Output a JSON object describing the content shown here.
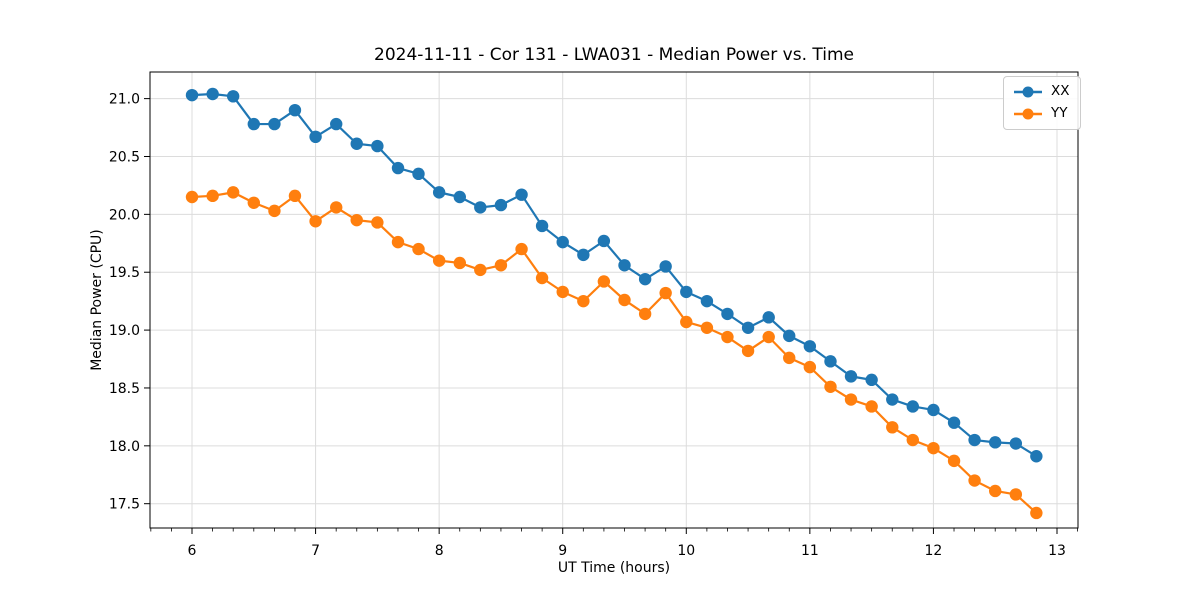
{
  "chart_data": {
    "type": "line",
    "title": "2024-11-11 - Cor 131 - LWA031 - Median Power vs. Time",
    "xlabel": "UT Time (hours)",
    "ylabel": "Median Power (CPU)",
    "xlim": [
      5.66,
      13.17
    ],
    "ylim": [
      17.29,
      21.23
    ],
    "x_ticks": [
      6,
      7,
      8,
      9,
      10,
      11,
      12,
      13
    ],
    "y_ticks": [
      17.5,
      18.0,
      18.5,
      19.0,
      19.5,
      20.0,
      20.5,
      21.0
    ],
    "x_minor_divisions": 6,
    "grid": true,
    "grid_color": "#dcdcdc",
    "legend_position": "upper right",
    "x": [
      6.0,
      6.167,
      6.333,
      6.5,
      6.667,
      6.833,
      7.0,
      7.167,
      7.333,
      7.5,
      7.667,
      7.833,
      8.0,
      8.167,
      8.333,
      8.5,
      8.667,
      8.833,
      9.0,
      9.167,
      9.333,
      9.5,
      9.667,
      9.833,
      10.0,
      10.167,
      10.333,
      10.5,
      10.667,
      10.833,
      11.0,
      11.167,
      11.333,
      11.5,
      11.667,
      11.833,
      12.0,
      12.167,
      12.333,
      12.5,
      12.667,
      12.833
    ],
    "series": [
      {
        "name": "XX",
        "color": "#1f77b4",
        "values": [
          21.03,
          21.04,
          21.02,
          20.78,
          20.78,
          20.9,
          20.67,
          20.78,
          20.61,
          20.59,
          20.4,
          20.35,
          20.19,
          20.15,
          20.06,
          20.08,
          20.17,
          19.9,
          19.76,
          19.65,
          19.77,
          19.56,
          19.44,
          19.55,
          19.33,
          19.25,
          19.14,
          19.02,
          19.11,
          18.95,
          18.86,
          18.73,
          18.6,
          18.57,
          18.4,
          18.34,
          18.31,
          18.2,
          18.05,
          18.03,
          18.02,
          17.91
        ]
      },
      {
        "name": "YY",
        "color": "#ff7f0e",
        "values": [
          20.15,
          20.16,
          20.19,
          20.1,
          20.03,
          20.16,
          19.94,
          20.06,
          19.95,
          19.93,
          19.76,
          19.7,
          19.6,
          19.58,
          19.52,
          19.56,
          19.7,
          19.45,
          19.33,
          19.25,
          19.42,
          19.26,
          19.14,
          19.32,
          19.07,
          19.02,
          18.94,
          18.82,
          18.94,
          18.76,
          18.68,
          18.51,
          18.4,
          18.34,
          18.16,
          18.05,
          17.98,
          17.87,
          17.7,
          17.61,
          17.58,
          17.42
        ]
      }
    ]
  }
}
